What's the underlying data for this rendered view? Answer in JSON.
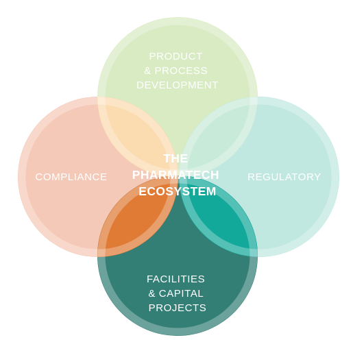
{
  "diagram": {
    "center": {
      "lines": [
        "THE",
        "PHARMATECH",
        "ECOSYSTEM"
      ]
    },
    "circles": {
      "top": {
        "lines": [
          "PRODUCT",
          "& PROCESS",
          "DEVELOPMENT"
        ],
        "color": "#d8ebc3"
      },
      "left": {
        "lines": [
          "COMPLIANCE"
        ],
        "color": "#f5c9b7"
      },
      "right": {
        "lines": [
          "REGULATORY"
        ],
        "color": "#c1e8e0"
      },
      "bottom": {
        "lines": [
          "FACILITIES",
          "& CAPITAL",
          "PROJECTS"
        ],
        "color": "#337f75"
      }
    },
    "overlaps": {
      "top_left": "#fbdcb0",
      "top_right": "#c8ebd9",
      "left_bottom": "#e07b36",
      "right_bottom": "#12a89a"
    }
  }
}
